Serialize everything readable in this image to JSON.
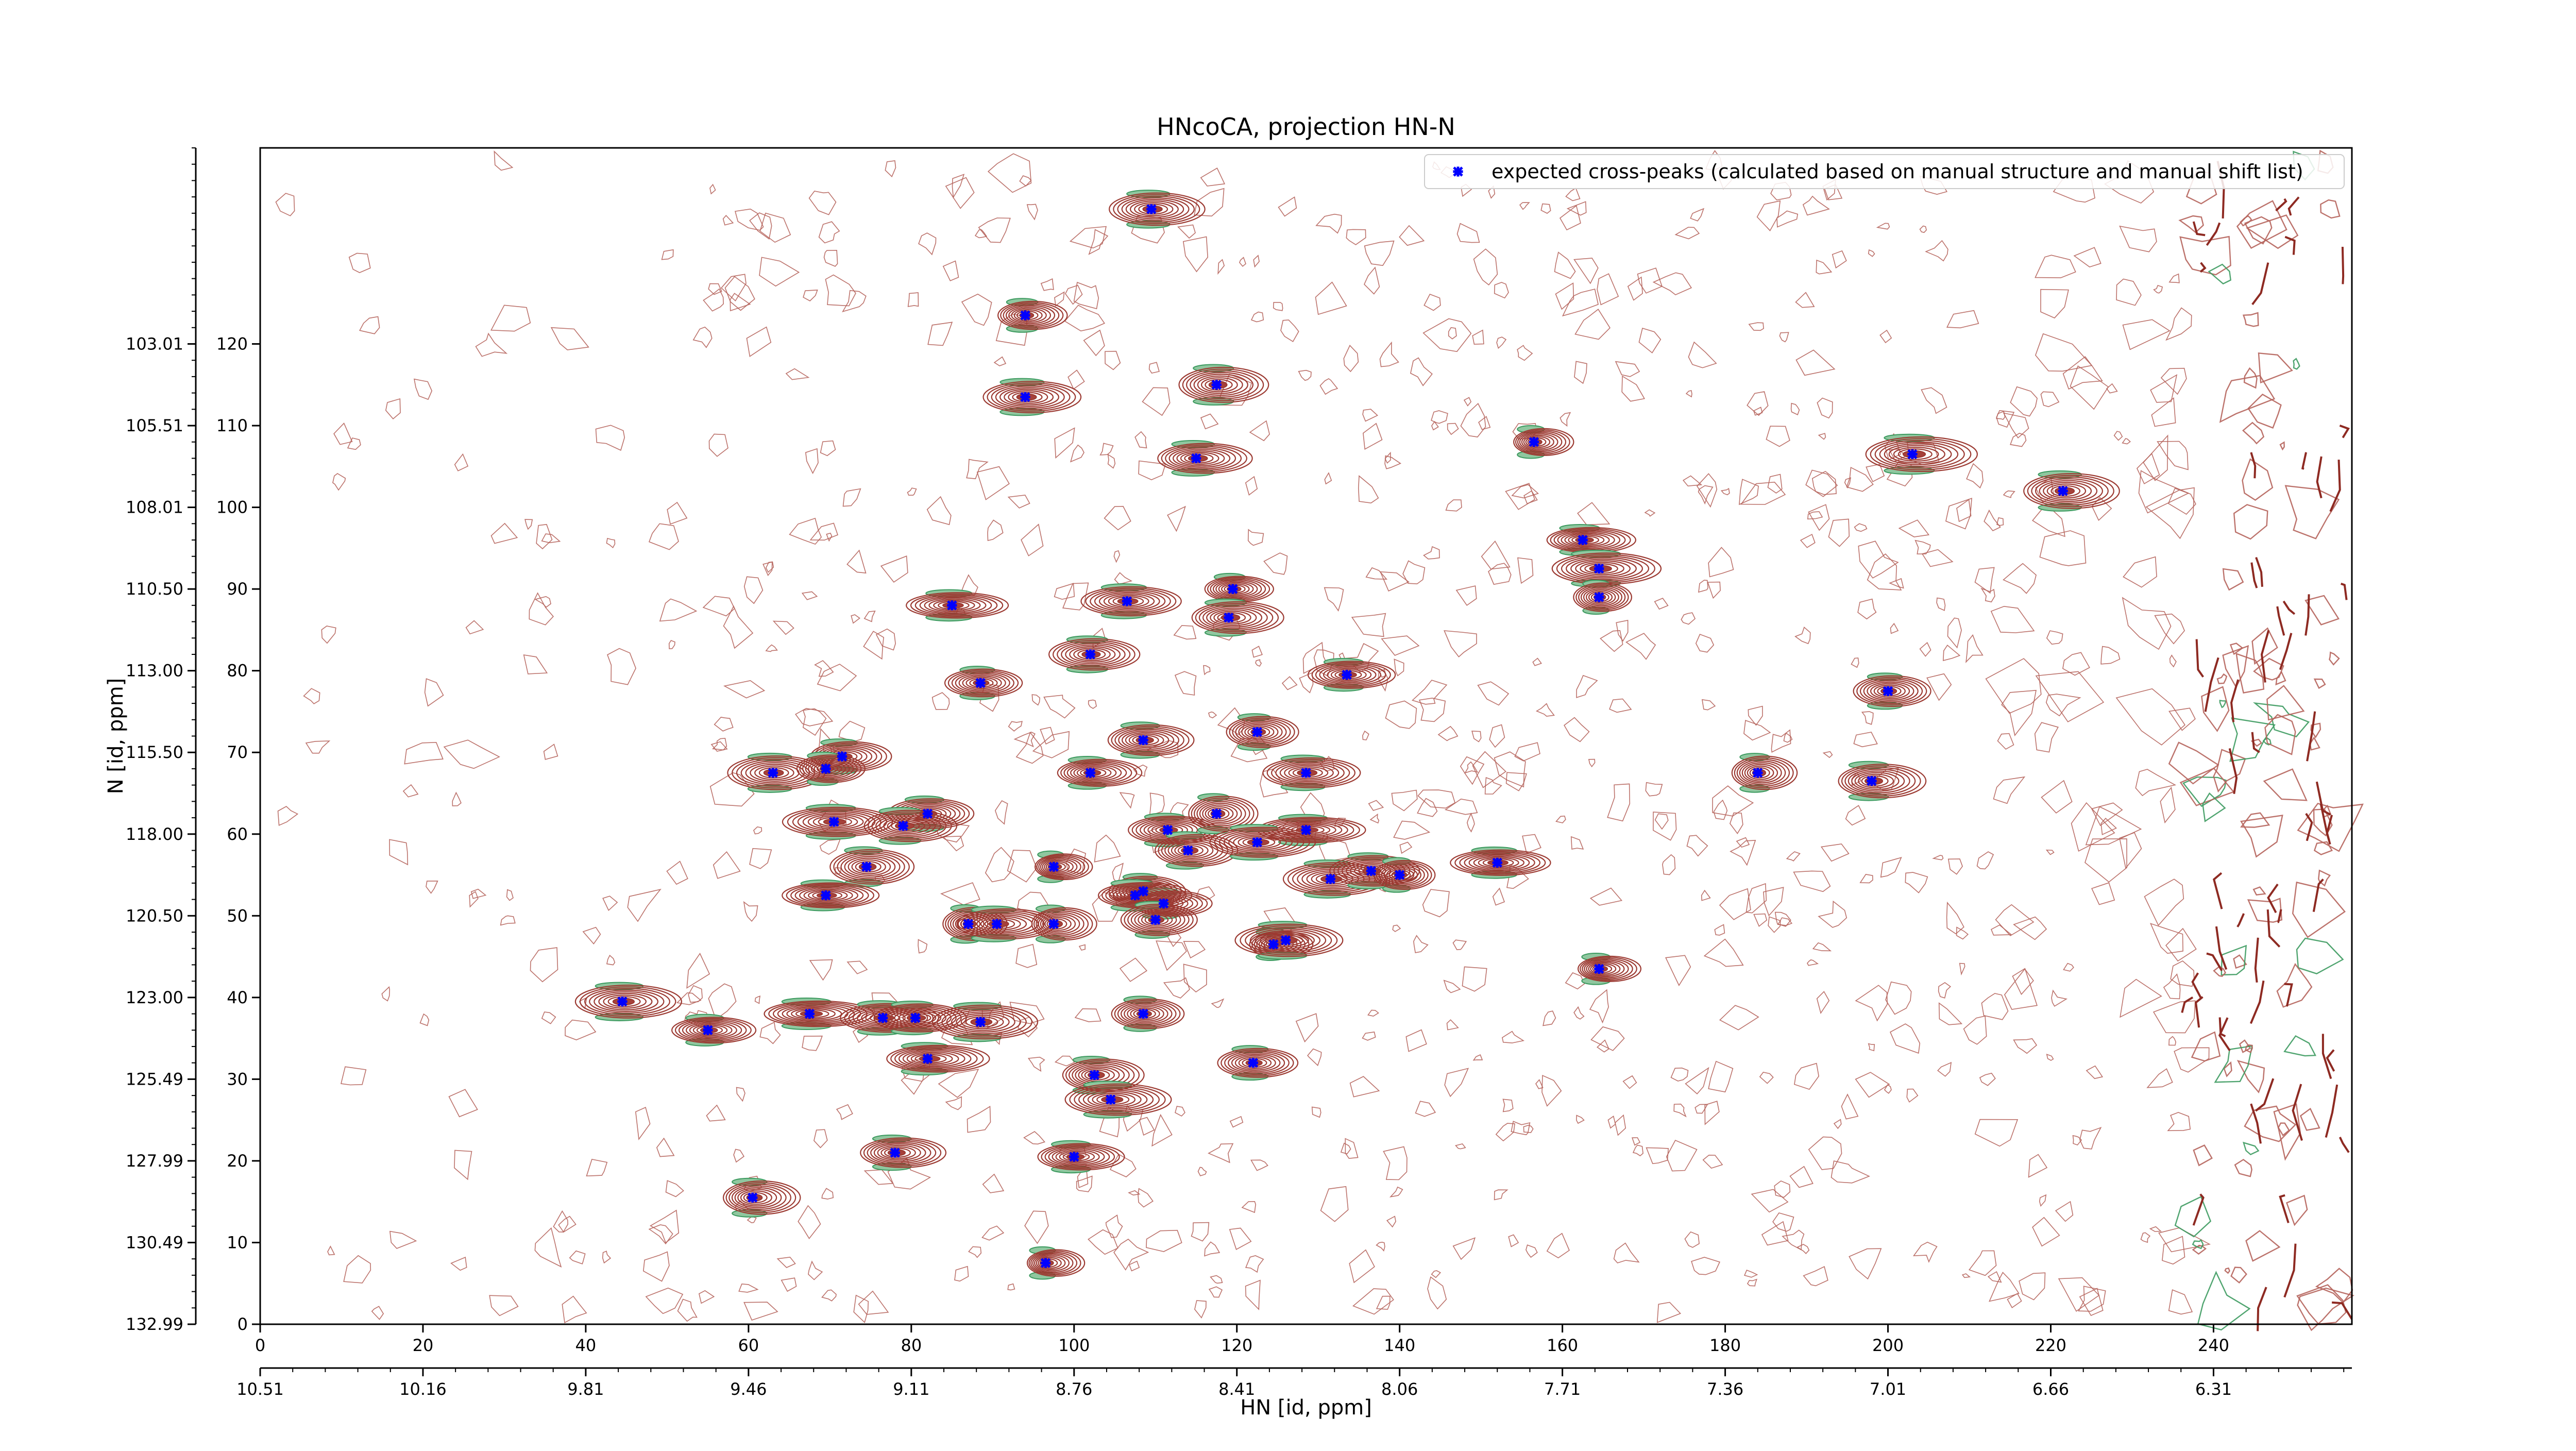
{
  "chart_data": {
    "type": "scatter",
    "title": "HNcoCA, projection HN-N",
    "xlabel": "HN [id, ppm]",
    "ylabel": "N [id, ppm]",
    "xlim": [
      0,
      257
    ],
    "ylim": [
      0,
      144
    ],
    "x_ticks": [
      "0",
      "20",
      "40",
      "60",
      "80",
      "100",
      "120",
      "140",
      "160",
      "180",
      "200",
      "220",
      "240"
    ],
    "x_tick_values": [
      0,
      20,
      40,
      60,
      80,
      100,
      120,
      140,
      160,
      180,
      200,
      220,
      240
    ],
    "x2_ticks": [
      "10.51",
      "10.16",
      "9.81",
      "9.46",
      "9.11",
      "8.76",
      "8.41",
      "8.06",
      "7.71",
      "7.36",
      "7.01",
      "6.66",
      "6.31"
    ],
    "x2_tick_values": [
      0,
      20,
      40,
      60,
      80,
      100,
      120,
      140,
      160,
      180,
      200,
      220,
      240
    ],
    "y_ticks": [
      "0",
      "10",
      "20",
      "30",
      "40",
      "50",
      "60",
      "70",
      "80",
      "90",
      "100",
      "110",
      "120"
    ],
    "y_tick_values": [
      0,
      10,
      20,
      30,
      40,
      50,
      60,
      70,
      80,
      90,
      100,
      110,
      120
    ],
    "y2_ticks": [
      "132.99",
      "130.49",
      "127.99",
      "125.49",
      "123.00",
      "120.50",
      "118.00",
      "115.50",
      "113.00",
      "110.50",
      "108.01",
      "105.51",
      "103.01"
    ],
    "y2_tick_values": [
      0,
      10,
      20,
      30,
      40,
      50,
      60,
      70,
      80,
      90,
      100,
      110,
      120
    ],
    "grid": false,
    "legend_position": "top-right",
    "series": [
      {
        "name": "expected cross-peaks (calculated based on manual structure and manual shift list)",
        "color": "#0000ff",
        "marker": "x",
        "points": [
          [
            109.5,
            136.5
          ],
          [
            94.0,
            123.5
          ],
          [
            94.0,
            113.5
          ],
          [
            117.5,
            115.0
          ],
          [
            115.0,
            106.0
          ],
          [
            156.5,
            108.0
          ],
          [
            203.0,
            106.5
          ],
          [
            221.5,
            102.0
          ],
          [
            162.5,
            96.0
          ],
          [
            164.5,
            92.5
          ],
          [
            164.5,
            89.0
          ],
          [
            85.0,
            88.0
          ],
          [
            106.5,
            88.5
          ],
          [
            119.5,
            90.0
          ],
          [
            119.0,
            86.5
          ],
          [
            102.0,
            82.0
          ],
          [
            88.5,
            78.5
          ],
          [
            133.5,
            79.5
          ],
          [
            200.0,
            77.5
          ],
          [
            108.5,
            71.5
          ],
          [
            122.5,
            72.5
          ],
          [
            71.5,
            69.5
          ],
          [
            63.0,
            67.5
          ],
          [
            69.5,
            68.0
          ],
          [
            102.0,
            67.5
          ],
          [
            128.5,
            67.5
          ],
          [
            184.0,
            67.5
          ],
          [
            198.0,
            66.5
          ],
          [
            82.0,
            62.5
          ],
          [
            70.5,
            61.5
          ],
          [
            79.0,
            61.0
          ],
          [
            111.5,
            60.5
          ],
          [
            117.5,
            62.5
          ],
          [
            128.5,
            60.5
          ],
          [
            114.0,
            58.0
          ],
          [
            74.5,
            56.0
          ],
          [
            97.5,
            56.0
          ],
          [
            122.5,
            59.0
          ],
          [
            131.5,
            54.5
          ],
          [
            136.5,
            55.5
          ],
          [
            140.0,
            55.0
          ],
          [
            152.0,
            56.5
          ],
          [
            69.5,
            52.5
          ],
          [
            108.5,
            53.0
          ],
          [
            111.0,
            51.5
          ],
          [
            107.5,
            52.5
          ],
          [
            110.0,
            49.5
          ],
          [
            87.0,
            49.0
          ],
          [
            90.5,
            49.0
          ],
          [
            97.5,
            49.0
          ],
          [
            124.5,
            46.5
          ],
          [
            126.0,
            47.0
          ],
          [
            164.5,
            43.5
          ],
          [
            44.5,
            39.5
          ],
          [
            55.0,
            36.0
          ],
          [
            67.5,
            38.0
          ],
          [
            76.5,
            37.5
          ],
          [
            80.5,
            37.5
          ],
          [
            88.5,
            37.0
          ],
          [
            108.5,
            38.0
          ],
          [
            102.5,
            30.5
          ],
          [
            122.0,
            32.0
          ],
          [
            82.0,
            32.5
          ],
          [
            104.5,
            27.5
          ],
          [
            78.0,
            21.0
          ],
          [
            100.0,
            20.5
          ],
          [
            60.5,
            15.5
          ],
          [
            96.5,
            7.5
          ]
        ]
      }
    ]
  }
}
